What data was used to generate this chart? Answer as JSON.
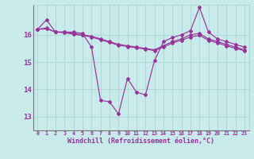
{
  "background_color": "#c8eaea",
  "grid_color": "#b0d8d8",
  "line_color": "#993399",
  "xlabel": "Windchill (Refroidissement éolien,°C)",
  "xlim": [
    -0.5,
    23.5
  ],
  "ylim": [
    12.5,
    17.1
  ],
  "yticks": [
    13,
    14,
    15,
    16
  ],
  "xticks": [
    0,
    1,
    2,
    3,
    4,
    5,
    6,
    7,
    8,
    9,
    10,
    11,
    12,
    13,
    14,
    15,
    16,
    17,
    18,
    19,
    20,
    21,
    22,
    23
  ],
  "line1_x": [
    0,
    1,
    2,
    3,
    4,
    5,
    6,
    7,
    8,
    9,
    10,
    11,
    12,
    13,
    14,
    15,
    16,
    17,
    18,
    19,
    20,
    21,
    22,
    23
  ],
  "line1_y": [
    16.2,
    16.55,
    16.1,
    16.1,
    16.1,
    16.05,
    15.55,
    13.6,
    13.55,
    13.1,
    14.4,
    13.9,
    13.8,
    15.05,
    15.75,
    15.9,
    16.0,
    16.15,
    17.0,
    16.1,
    15.85,
    15.75,
    15.65,
    15.55
  ],
  "line2_x": [
    0,
    1,
    2,
    3,
    4,
    5,
    6,
    7,
    8,
    9,
    10,
    11,
    12,
    13,
    14,
    15,
    16,
    17,
    18,
    19,
    20,
    21,
    22,
    23
  ],
  "line2_y": [
    16.2,
    16.25,
    16.1,
    16.1,
    16.05,
    16.0,
    15.95,
    15.85,
    15.75,
    15.65,
    15.6,
    15.55,
    15.5,
    15.45,
    15.6,
    15.75,
    15.85,
    16.0,
    16.05,
    15.85,
    15.75,
    15.65,
    15.55,
    15.45
  ],
  "line3_x": [
    0,
    1,
    2,
    3,
    4,
    5,
    6,
    7,
    8,
    9,
    10,
    11,
    12,
    13,
    14,
    15,
    16,
    17,
    18,
    19,
    20,
    21,
    22,
    23
  ],
  "line3_y": [
    16.2,
    16.22,
    16.1,
    16.08,
    16.02,
    15.98,
    15.92,
    15.82,
    15.72,
    15.62,
    15.57,
    15.52,
    15.48,
    15.42,
    15.55,
    15.7,
    15.8,
    15.92,
    15.98,
    15.8,
    15.7,
    15.6,
    15.5,
    15.42
  ]
}
